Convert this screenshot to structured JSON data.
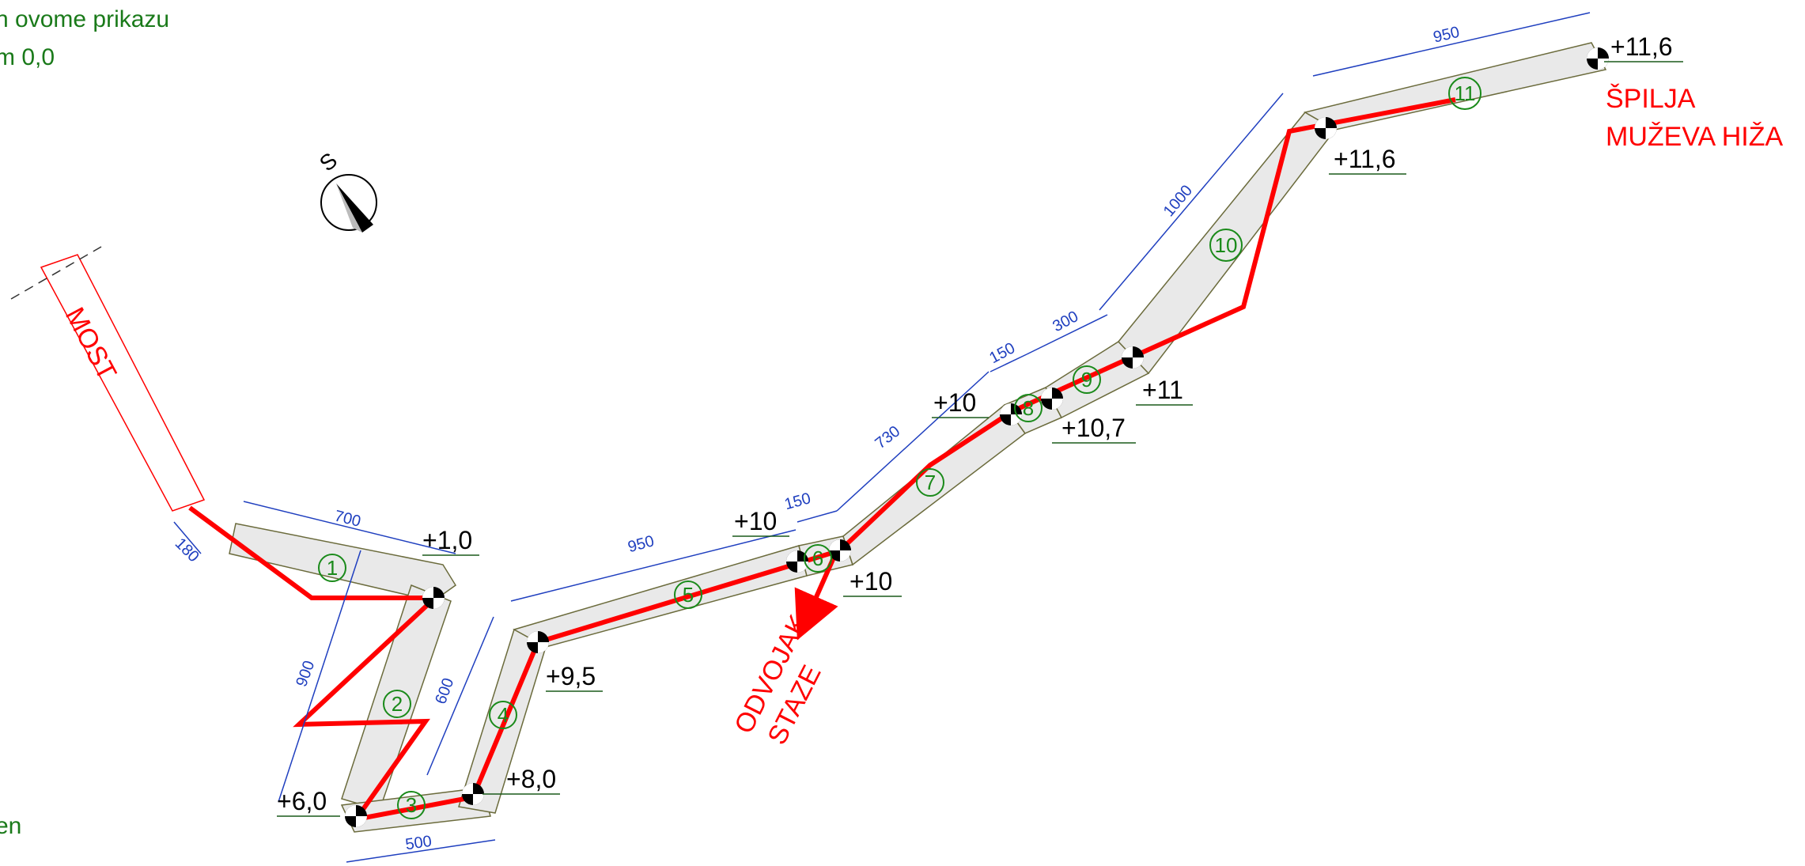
{
  "notes": {
    "top_line1": "n ovome prikazu",
    "top_line2": "m 0,0",
    "bottom": "en"
  },
  "bridge_label": "MOST",
  "compass_letter": "S",
  "branch_label_line1": "ODVOJAK",
  "branch_label_line2": "STAZE",
  "cave_label_line1": "ŠPILJA",
  "cave_label_line2": "MUŽEVA HIŽA",
  "segments": [
    "1",
    "2",
    "3",
    "4",
    "5",
    "6",
    "7",
    "8",
    "9",
    "10",
    "11"
  ],
  "dimensions": [
    "180",
    "700",
    "900",
    "500",
    "600",
    "950",
    "150",
    "730",
    "150",
    "300",
    "1000",
    "950"
  ],
  "elevations": [
    "+1,0",
    "+6,0",
    "+8,0",
    "+9,5",
    "+10",
    "+10",
    "+10",
    "+10,7",
    "+11",
    "+11,6",
    "+11,6"
  ],
  "colors": {
    "route": "#ff0000",
    "dimension": "#1f3fbf",
    "numbers": "#1a8a1a",
    "elevation": "#000000"
  }
}
